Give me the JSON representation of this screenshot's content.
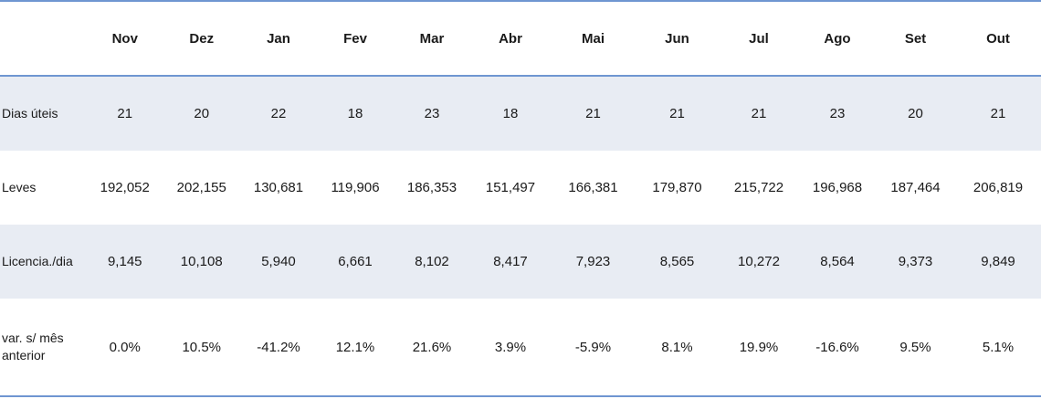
{
  "table": {
    "columns": [
      "",
      "Nov",
      "Dez",
      "Jan",
      "Fev",
      "Mar",
      "Abr",
      "Mai",
      "Jun",
      "Jul",
      "Ago",
      "Set",
      "Out"
    ],
    "rows": [
      {
        "label": "Dias úteis",
        "values": [
          "21",
          "20",
          "22",
          "18",
          "23",
          "18",
          "21",
          "21",
          "21",
          "23",
          "20",
          "21"
        ]
      },
      {
        "label": "Leves",
        "values": [
          "192,052",
          "202,155",
          "130,681",
          "119,906",
          "186,353",
          "151,497",
          "166,381",
          "179,870",
          "215,722",
          "196,968",
          "187,464",
          "206,819"
        ]
      },
      {
        "label": "Licencia./dia",
        "values": [
          "9,145",
          "10,108",
          "5,940",
          "6,661",
          "8,102",
          "8,417",
          "7,923",
          "8,565",
          "10,272",
          "8,564",
          "9,373",
          "9,849"
        ]
      },
      {
        "label": "var. s/ mês anterior",
        "values": [
          "0.0%",
          "10.5%",
          "-41.2%",
          "12.1%",
          "21.6%",
          "3.9%",
          "-5.9%",
          "8.1%",
          "19.9%",
          "-16.6%",
          "9.5%",
          "5.1%"
        ]
      }
    ]
  },
  "colors": {
    "border": "#6f96d1",
    "row_shade": "#e8ecf3"
  }
}
